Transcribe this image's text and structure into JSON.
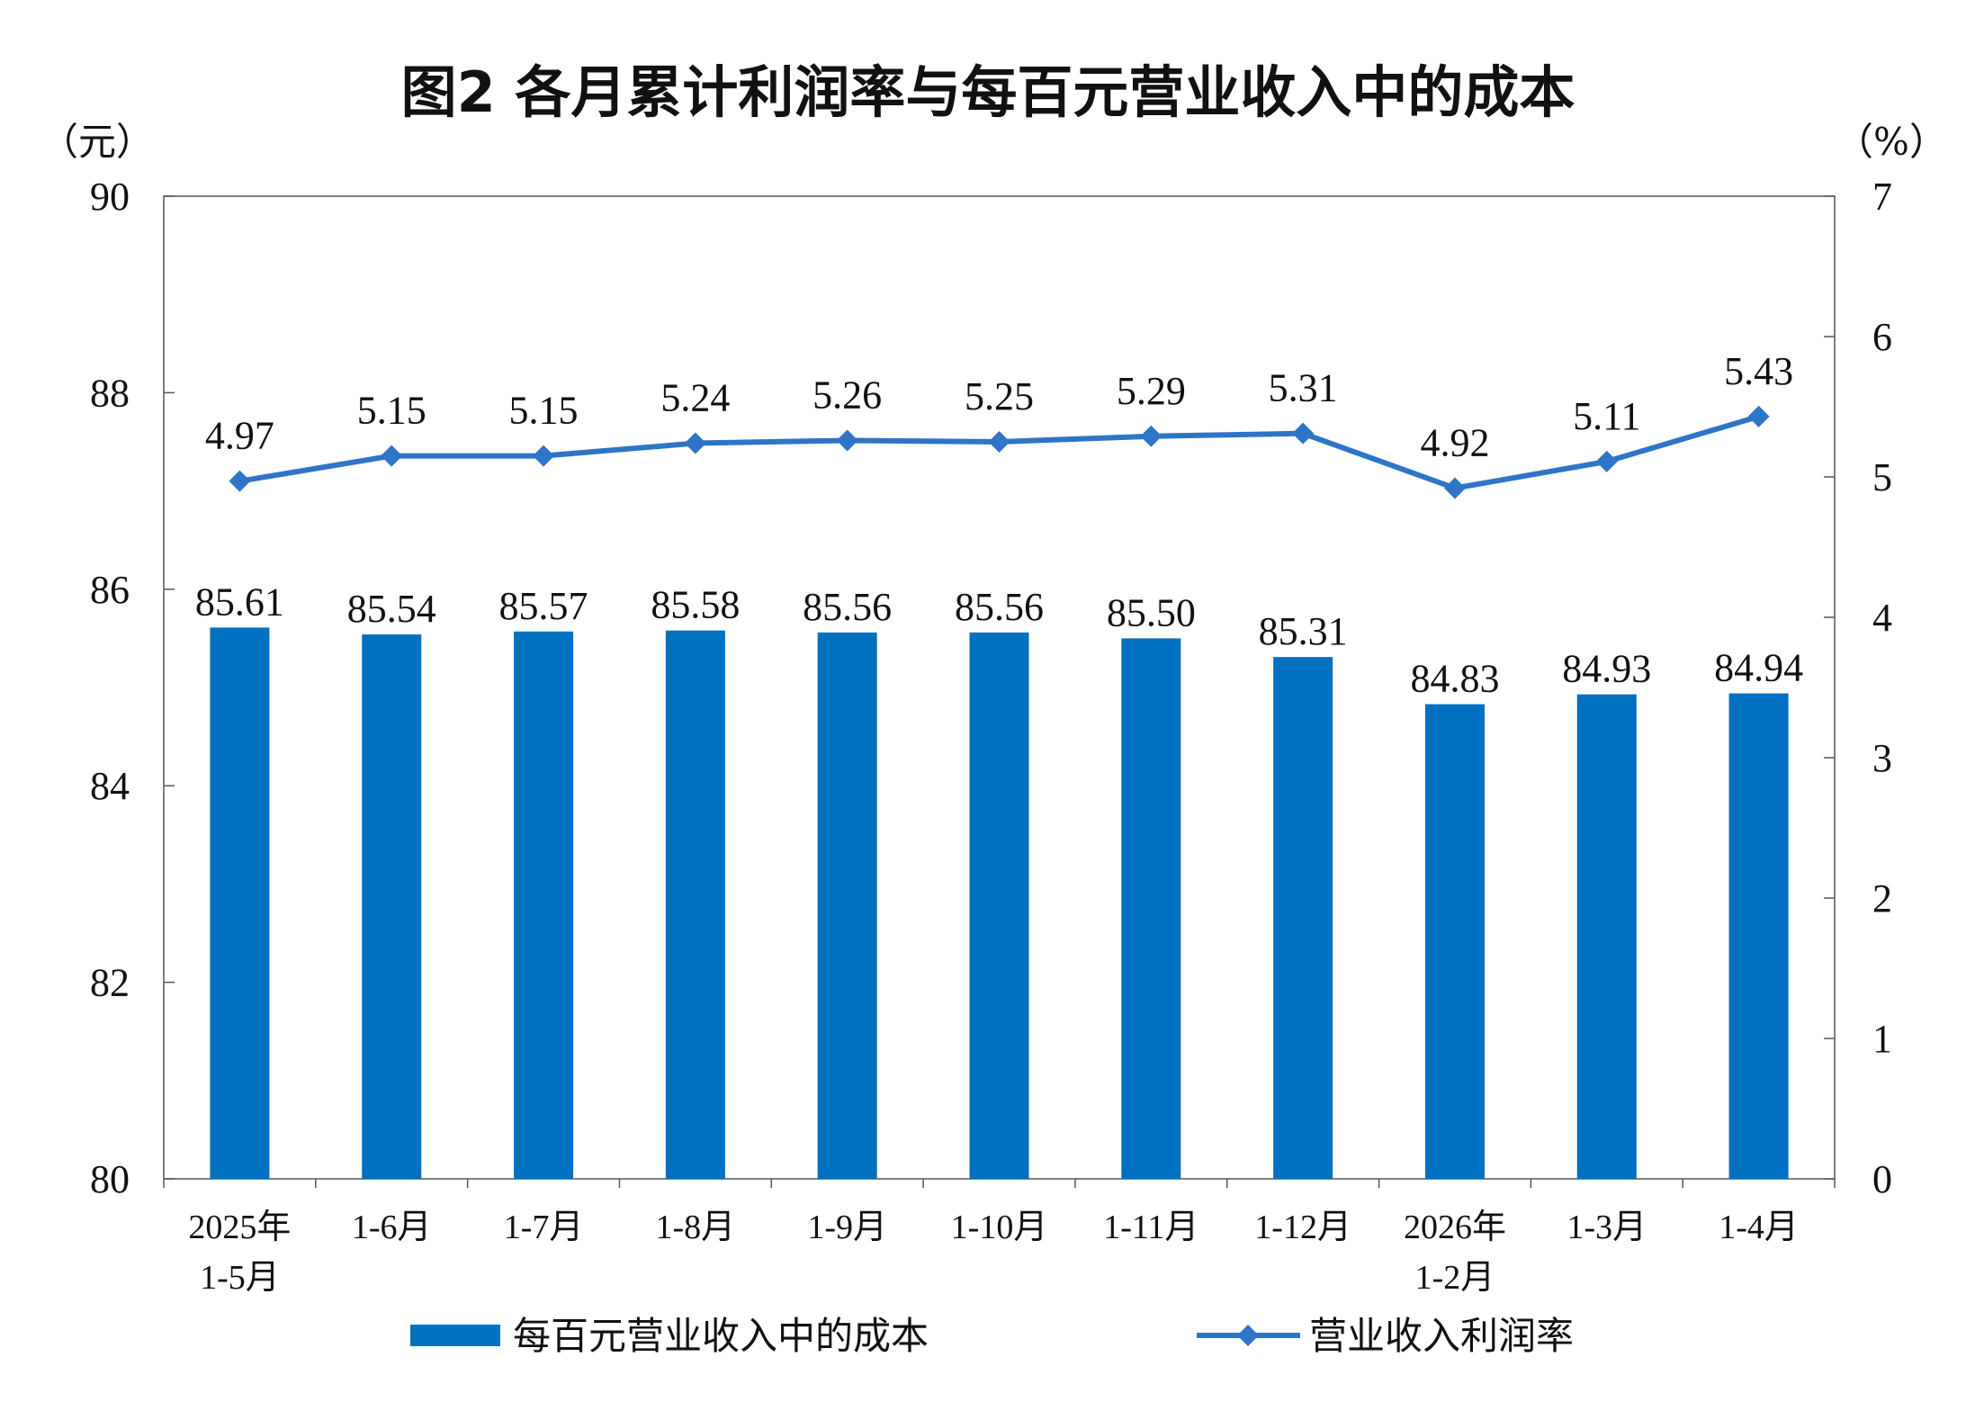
{
  "chart_data": {
    "type": "bar",
    "title": "图2  各月累计利润率与每百元营业收入中的成本",
    "y_left_unit": "（元）",
    "y_right_unit": "（%）",
    "y_left_lim": [
      80,
      90
    ],
    "y_left_ticks": [
      "80",
      "82",
      "84",
      "86",
      "88",
      "90"
    ],
    "y_right_lim": [
      0,
      7
    ],
    "y_right_ticks": [
      "0",
      "1",
      "2",
      "3",
      "4",
      "5",
      "6",
      "7"
    ],
    "grid": false,
    "legend_position": "bottom",
    "categories": [
      [
        "2025年",
        "1-5月"
      ],
      [
        "1-6月"
      ],
      [
        "1-7月"
      ],
      [
        "1-8月"
      ],
      [
        "1-9月"
      ],
      [
        "1-10月"
      ],
      [
        "1-11月"
      ],
      [
        "1-12月"
      ],
      [
        "2026年",
        "1-2月"
      ],
      [
        "1-3月"
      ],
      [
        "1-4月"
      ]
    ],
    "series": [
      {
        "name": "每百元营业收入中的成本",
        "type": "bar",
        "axis": "left",
        "color": "#0070C0",
        "values": [
          85.61,
          85.54,
          85.57,
          85.58,
          85.56,
          85.56,
          85.5,
          85.31,
          84.83,
          84.93,
          84.94
        ],
        "labels": [
          "85.61",
          "85.54",
          "85.57",
          "85.58",
          "85.56",
          "85.56",
          "85.50",
          "85.31",
          "84.83",
          "84.93",
          "84.94"
        ]
      },
      {
        "name": "营业收入利润率",
        "type": "line",
        "axis": "right",
        "color": "#2E75C8",
        "marker": "diamond",
        "values": [
          4.97,
          5.15,
          5.15,
          5.24,
          5.26,
          5.25,
          5.29,
          5.31,
          4.92,
          5.11,
          5.43
        ],
        "labels": [
          "4.97",
          "5.15",
          "5.15",
          "5.24",
          "5.26",
          "5.25",
          "5.29",
          "5.31",
          "4.92",
          "5.11",
          "5.43"
        ]
      }
    ]
  }
}
